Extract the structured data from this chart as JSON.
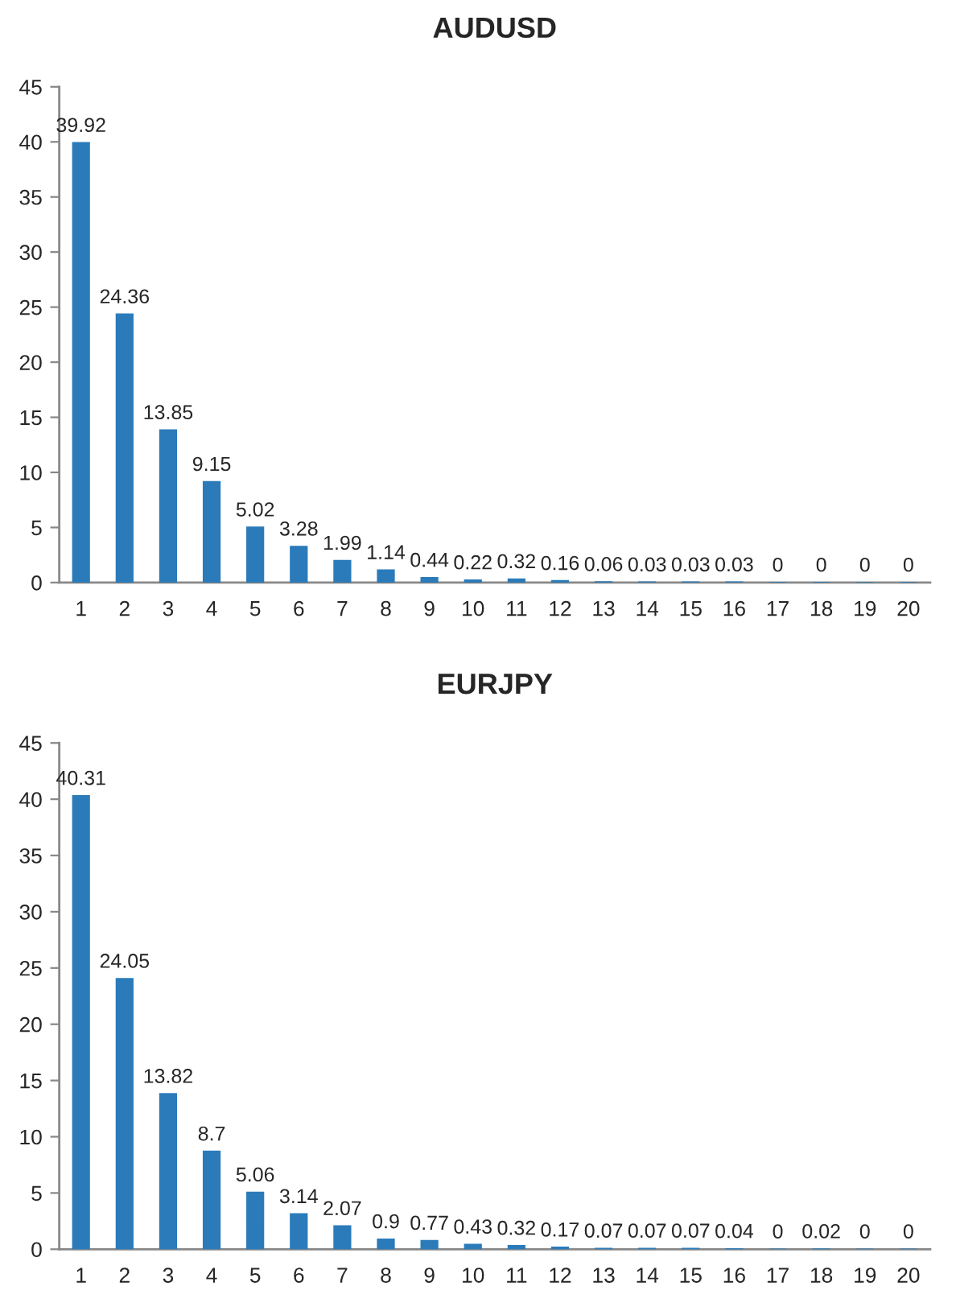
{
  "chart_data": [
    {
      "type": "bar",
      "title": "AUDUSD",
      "categories": [
        "1",
        "2",
        "3",
        "4",
        "5",
        "6",
        "7",
        "8",
        "9",
        "10",
        "11",
        "12",
        "13",
        "14",
        "15",
        "16",
        "17",
        "18",
        "19",
        "20"
      ],
      "values": [
        39.92,
        24.36,
        13.85,
        9.15,
        5.02,
        3.28,
        1.99,
        1.14,
        0.44,
        0.22,
        0.32,
        0.16,
        0.06,
        0.03,
        0.03,
        0.03,
        0,
        0,
        0,
        0
      ],
      "color": "#2b7bba",
      "ylim": [
        0,
        45
      ],
      "yticks": [
        0,
        5,
        10,
        15,
        20,
        25,
        30,
        35,
        40,
        45
      ],
      "data_labels": true
    },
    {
      "type": "bar",
      "title": "EURJPY",
      "categories": [
        "1",
        "2",
        "3",
        "4",
        "5",
        "6",
        "7",
        "8",
        "9",
        "10",
        "11",
        "12",
        "13",
        "14",
        "15",
        "16",
        "17",
        "18",
        "19",
        "20"
      ],
      "values": [
        40.31,
        24.05,
        13.82,
        8.7,
        5.06,
        3.14,
        2.07,
        0.9,
        0.77,
        0.43,
        0.32,
        0.17,
        0.07,
        0.07,
        0.07,
        0.04,
        0,
        0.02,
        0,
        0
      ],
      "color": "#2b7bba",
      "ylim": [
        0,
        45
      ],
      "yticks": [
        0,
        5,
        10,
        15,
        20,
        25,
        30,
        35,
        40,
        45
      ],
      "data_labels": true
    }
  ]
}
